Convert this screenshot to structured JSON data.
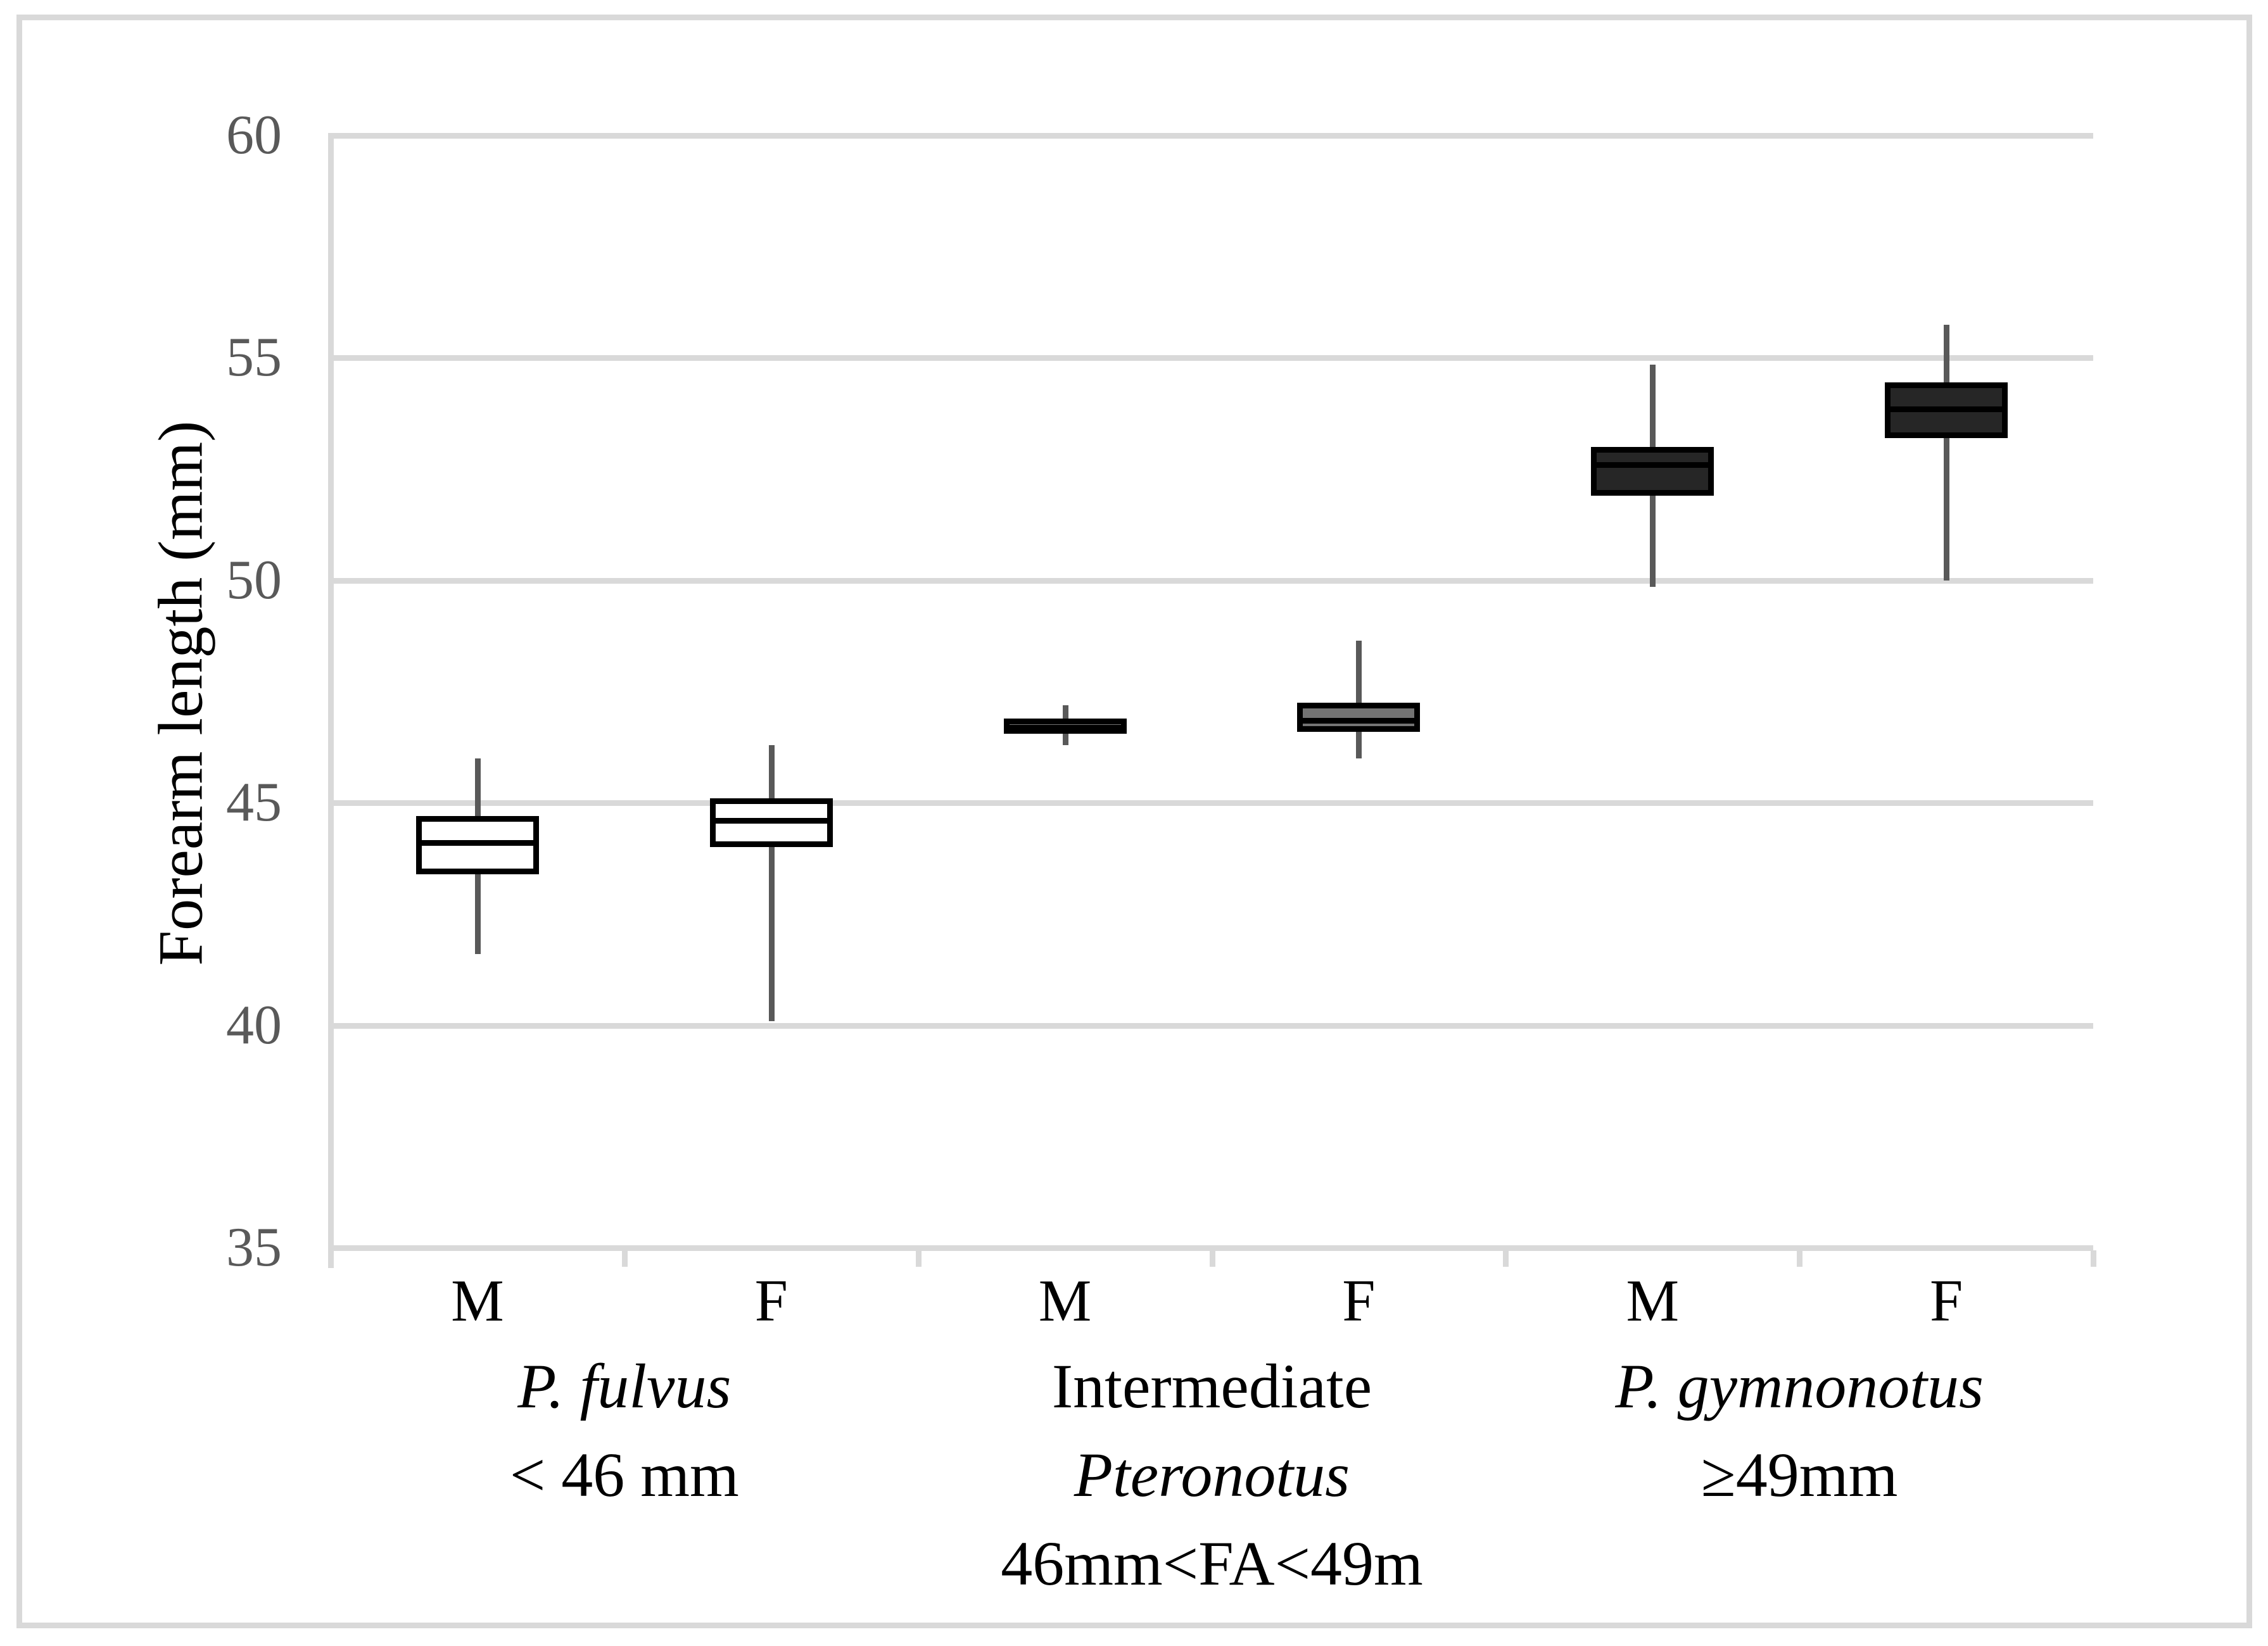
{
  "figure": {
    "background": "#ffffff",
    "frame_color": "#d9d9d9"
  },
  "chart_data": {
    "type": "boxplot",
    "title": "",
    "xlabel": "",
    "ylabel": "Forearm length (mm)",
    "ylim": [
      35,
      60
    ],
    "yticks": [
      60,
      55,
      50,
      45,
      40,
      35
    ],
    "grid": "horizontal",
    "legend": "none",
    "colors": {
      "grid": "#d9d9d9",
      "whisker": "#595959",
      "box_border": "#000000",
      "median": "#000000",
      "tick_label": "#595959",
      "text": "#000000",
      "fulvus_fill": "#ffffff",
      "intermediate_fill": "#737373",
      "gymnonotus_fill": "#262626"
    },
    "groups": [
      {
        "name_lines": [
          {
            "text": "P. fulvus",
            "italic": true
          },
          {
            "text": "< 46 mm",
            "italic": false
          }
        ],
        "boxes": [
          {
            "sex": "M",
            "fill": "#ffffff",
            "low": 41.6,
            "q1": 43.4,
            "median": 44.1,
            "q3": 44.7,
            "high": 46.0
          },
          {
            "sex": "F",
            "fill": "#ffffff",
            "low": 40.1,
            "q1": 44.0,
            "median": 44.6,
            "q3": 45.1,
            "high": 46.3
          }
        ]
      },
      {
        "name_lines": [
          {
            "text": "Intermediate",
            "italic": false
          },
          {
            "text": "Pteronotus",
            "italic": true
          },
          {
            "text": "46mm<FA<49m",
            "italic": false
          }
        ],
        "boxes": [
          {
            "sex": "M",
            "fill": "#737373",
            "low": 46.3,
            "q1": 46.55,
            "median": 46.7,
            "q3": 46.9,
            "high": 47.2
          },
          {
            "sex": "F",
            "fill": "#737373",
            "low": 46.0,
            "q1": 46.6,
            "median": 46.85,
            "q3": 47.25,
            "high": 48.65
          }
        ]
      },
      {
        "name_lines": [
          {
            "text": "P. gymnonotus",
            "italic": true
          },
          {
            "text": "≥49mm",
            "italic": false
          }
        ],
        "boxes": [
          {
            "sex": "M",
            "fill": "#262626",
            "low": 49.85,
            "q1": 51.9,
            "median": 52.6,
            "q3": 53.0,
            "high": 54.85
          },
          {
            "sex": "F",
            "fill": "#262626",
            "low": 50.0,
            "q1": 53.2,
            "median": 53.85,
            "q3": 54.45,
            "high": 55.75
          }
        ]
      }
    ]
  }
}
